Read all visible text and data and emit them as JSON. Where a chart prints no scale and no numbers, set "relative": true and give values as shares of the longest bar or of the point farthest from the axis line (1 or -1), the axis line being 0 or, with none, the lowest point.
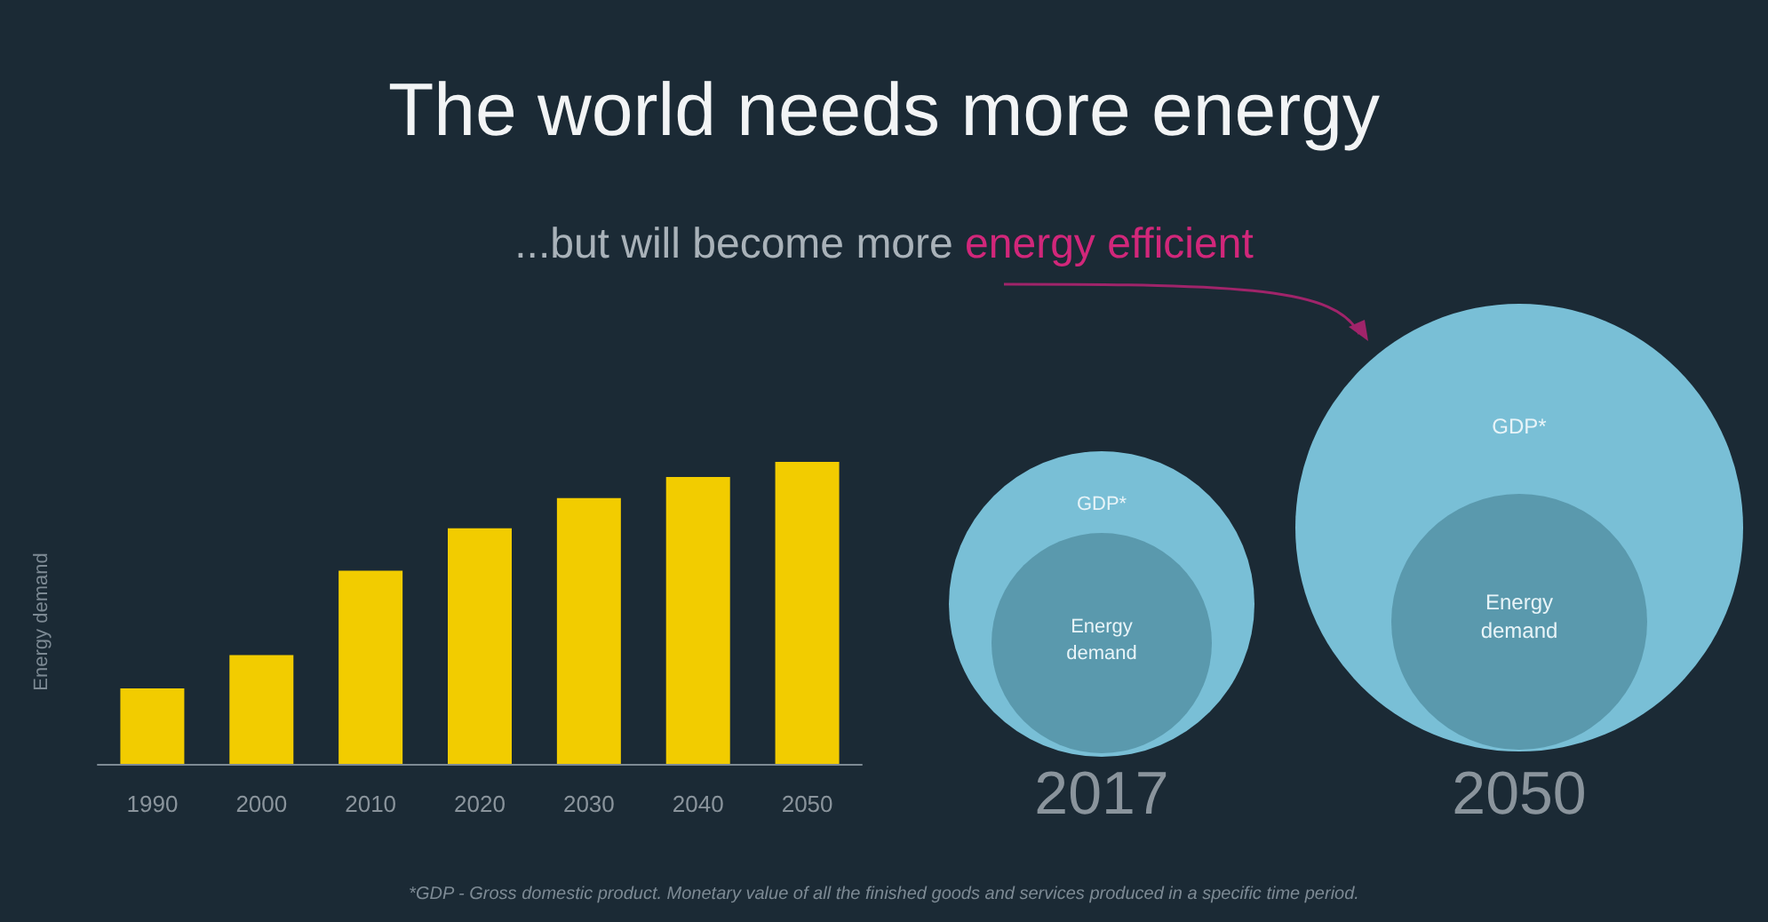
{
  "chart_data": [
    {
      "type": "bar",
      "title": "The world needs more energy",
      "subtitle": "...but will become more energy efficient",
      "ylabel": "Energy demand",
      "relative": true,
      "categories": [
        "1990",
        "2000",
        "2010",
        "2020",
        "2030",
        "2040",
        "2050"
      ],
      "values": [
        0.25,
        0.36,
        0.64,
        0.78,
        0.88,
        0.95,
        1
      ],
      "color": "#f2cc00",
      "annotations": [
        "*GDP - Gross domestic product. Monetary value of all the finished goods and services produced in a specific time period."
      ]
    },
    {
      "type": "other",
      "categories": [
        "2017",
        "2050"
      ],
      "annotations": [
        "GDP*",
        "Energy demand"
      ]
    }
  ]
}
